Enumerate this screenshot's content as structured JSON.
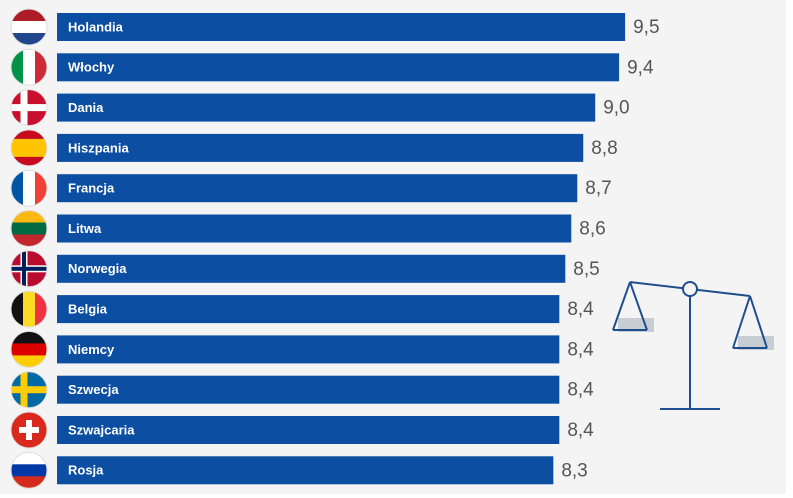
{
  "chart_data": {
    "type": "bar",
    "orientation": "horizontal",
    "categories": [
      "Holandia",
      "Włochy",
      "Dania",
      "Hiszpania",
      "Francja",
      "Litwa",
      "Norwegia",
      "Belgia",
      "Niemcy",
      "Szwecja",
      "Szwajcaria",
      "Rosja"
    ],
    "values": [
      9.5,
      9.4,
      9.0,
      8.8,
      8.7,
      8.6,
      8.5,
      8.4,
      8.4,
      8.4,
      8.4,
      8.3
    ],
    "value_labels": [
      "9,5",
      "9,4",
      "9,0",
      "8,8",
      "8,7",
      "8,6",
      "8,5",
      "8,4",
      "8,4",
      "8,4",
      "8,4",
      "8,3"
    ],
    "color": "#0b4ea2",
    "xlim": [
      0,
      10
    ]
  }
}
